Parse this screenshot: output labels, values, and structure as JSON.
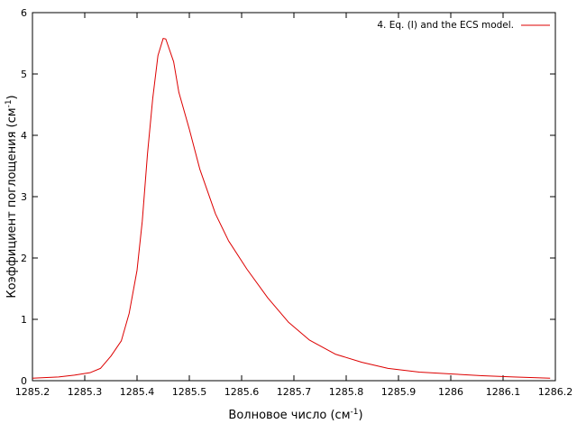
{
  "chart_data": {
    "type": "line",
    "title": "",
    "xlabel": "Волновое число (см",
    "xlabel_sup": "-1",
    "xlabel_end": ")",
    "ylabel": "Коэффициент поглощения (см",
    "ylabel_sup": "-1",
    "ylabel_end": ")",
    "xlim": [
      1285.2,
      1286.2
    ],
    "ylim": [
      0,
      6
    ],
    "xticks": [
      1285.2,
      1285.3,
      1285.4,
      1285.5,
      1285.6,
      1285.7,
      1285.8,
      1285.9,
      1286,
      1286.1,
      1286.2
    ],
    "xtick_labels": [
      "1285.2",
      "1285.3",
      "1285.4",
      "1285.5",
      "1285.6",
      "1285.7",
      "1285.8",
      "1285.9",
      "1286",
      "1286.1",
      "1286.2"
    ],
    "yticks": [
      0,
      1,
      2,
      3,
      4,
      5,
      6
    ],
    "ytick_labels": [
      "0",
      "1",
      "2",
      "3",
      "4",
      "5",
      "6"
    ],
    "grid": false,
    "legend_position": "top-right",
    "series": [
      {
        "name": "4. Eq. (I) and the ECS model.",
        "color": "#dd0000",
        "x": [
          1285.2,
          1285.25,
          1285.28,
          1285.31,
          1285.33,
          1285.35,
          1285.37,
          1285.385,
          1285.4,
          1285.41,
          1285.42,
          1285.43,
          1285.44,
          1285.45,
          1285.455,
          1285.47,
          1285.48,
          1285.5,
          1285.52,
          1285.55,
          1285.575,
          1285.61,
          1285.65,
          1285.69,
          1285.73,
          1285.78,
          1285.83,
          1285.88,
          1285.94,
          1286.0,
          1286.06,
          1286.12,
          1286.19
        ],
        "y": [
          0.04,
          0.06,
          0.09,
          0.13,
          0.2,
          0.4,
          0.65,
          1.1,
          1.8,
          2.6,
          3.7,
          4.6,
          5.3,
          5.58,
          5.57,
          5.2,
          4.7,
          4.1,
          3.45,
          2.72,
          2.28,
          1.82,
          1.35,
          0.95,
          0.66,
          0.43,
          0.3,
          0.2,
          0.14,
          0.11,
          0.08,
          0.06,
          0.04
        ]
      }
    ]
  }
}
